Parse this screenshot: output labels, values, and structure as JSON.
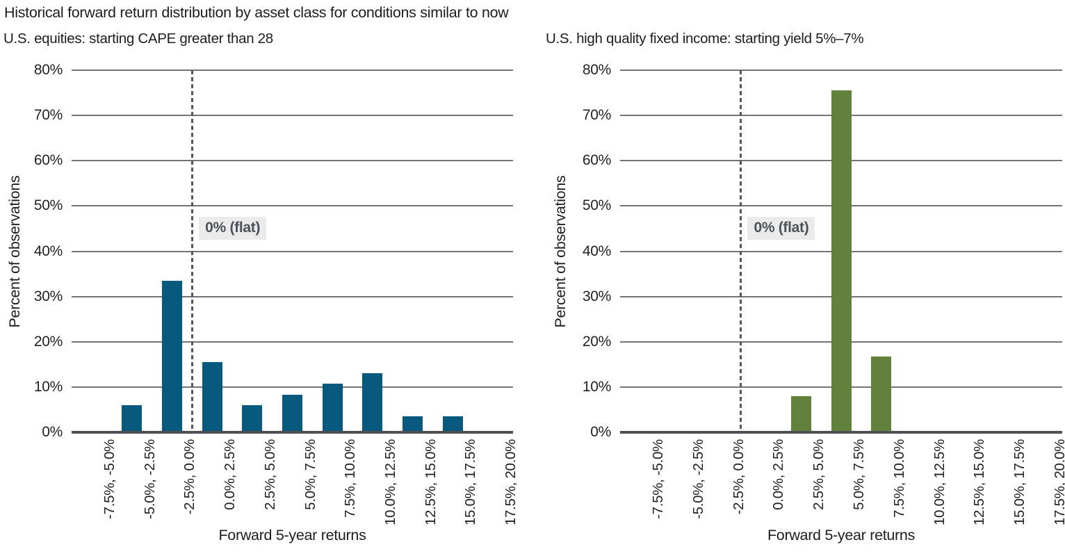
{
  "figure": {
    "title": "Historical forward return distribution by asset class for conditions similar to now"
  },
  "chart_data": [
    {
      "type": "bar",
      "title": "U.S. equities: starting CAPE greater than 28",
      "xlabel": "Forward 5-year returns",
      "ylabel": "Percent of observations",
      "categories": [
        "-7.5%, -5.0%",
        "-5.0%, -2.5%",
        "-2.5%, 0.0%",
        "0.0%, 2.5%",
        "2.5%, 5.0%",
        "5.0%, 7.5%",
        "7.5%, 10.0%",
        "10.0%, 12.5%",
        "12.5%, 15.0%",
        "15.0%, 17.5%",
        "17.5%, 20.0%"
      ],
      "values": [
        0,
        6.0,
        33.4,
        15.5,
        6.0,
        8.3,
        10.7,
        13.1,
        3.6,
        3.6,
        0
      ],
      "ylim": [
        0,
        80
      ],
      "ytick_step": 10,
      "ytick_suffix": "%",
      "grid": true,
      "legend": "none",
      "bar_color": "#075a7e",
      "annotation": {
        "text": "0% (flat)",
        "at_category_boundary": 3
      }
    },
    {
      "type": "bar",
      "title": "U.S. high quality fixed income: starting yield 5%–7%",
      "xlabel": "Forward 5-year returns",
      "ylabel": "Percent of observations",
      "categories": [
        "-7.5%, -5.0%",
        "-5.0%, -2.5%",
        "-2.5%, 0.0%",
        "0.0%, 2.5%",
        "2.5%, 5.0%",
        "5.0%, 7.5%",
        "7.5%, 10.0%",
        "10.0%, 12.5%",
        "12.5%, 15.0%",
        "15.0%, 17.5%",
        "17.5%, 20.0%"
      ],
      "values": [
        0,
        0,
        0,
        0,
        8.0,
        75.5,
        16.8,
        0,
        0,
        0,
        0
      ],
      "ylim": [
        0,
        80
      ],
      "ytick_step": 10,
      "ytick_suffix": "%",
      "grid": true,
      "legend": "none",
      "bar_color": "#62813c",
      "annotation": {
        "text": "0% (flat)",
        "at_category_boundary": 3
      }
    }
  ],
  "style": {
    "grid_color": "#717478",
    "axis_color": "#4d5156",
    "dash_color": "#54585e",
    "annotation_bg": "#ebebeb",
    "annotation_fg": "#4d525a",
    "text_color": "#1d1d1d"
  }
}
